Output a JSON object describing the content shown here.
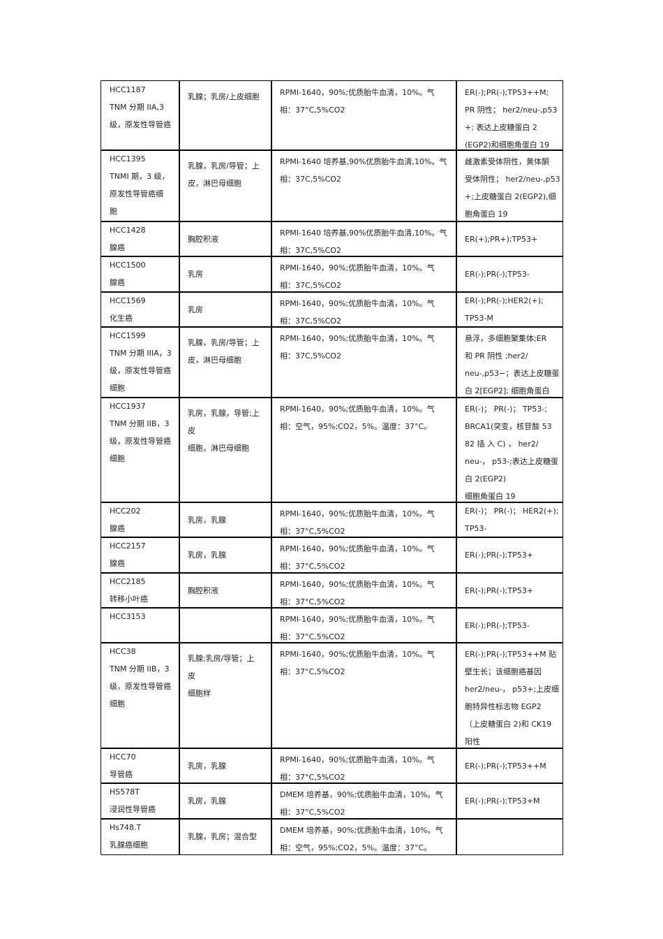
{
  "table": {
    "rows": [
      [
        [
          "HCC1187",
          "TNM 分期 IIA,3",
          "级，原发性导管癌"
        ],
        [
          "乳腺；乳房/上皮细胞"
        ],
        [
          "RPMI-1640，90%;优质胎牛血清，10%。气",
          "相：37°C,5%CO2"
        ],
        [
          "ER(-);PR(-);TP53++M;",
          "PR 阴性； her2/neu-,p53",
          "+; 表达上皮糖蛋白 2",
          "(EGP2)和细胞角蛋白 19"
        ]
      ],
      [
        [
          "HCC1395",
          "TNMI 期，3 级，",
          "原发性导管癌细",
          "胞"
        ],
        [
          "乳腺，乳房/导管；上",
          "皮，淋巴母细胞"
        ],
        [
          "RPMI-1640 培养基,90%优质胎牛血清,10%。气",
          "相：37C,5%CO2"
        ],
        [
          "雌激素受体阴性，黄体酮",
          "受体阴性； her2/neu-,p53",
          "+;上皮糖蛋白 2(EGP2),细",
          "胞角蛋白 19"
        ]
      ],
      [
        [
          "HCC1428",
          "腺癌"
        ],
        [
          "胸腔积液"
        ],
        [
          "RPMI-1640 培养基,90%优质胎牛血清,10%。气",
          "相：37C,5%CO2"
        ],
        [
          "ER(+);PR+);TP53+"
        ]
      ],
      [
        [
          "HCC1500",
          "腺癌"
        ],
        [
          "乳房"
        ],
        [
          "RPMI-1640，90%;优质胎牛血清，10%。气",
          "相：37C,5%CO2"
        ],
        [
          "ER(-);PR(-);TP53-"
        ]
      ],
      [
        [
          "HCC1569",
          "化生癌"
        ],
        [
          "乳房"
        ],
        [
          "RPMI-1640，90%;优质胎牛血清，10%。气",
          "相：37C,5%CO2"
        ],
        [
          "ER(-);PR(-);HER2(+);",
          "TP53-M"
        ]
      ],
      [
        [
          "HCC1599",
          "TNM 分期 IIIA，3",
          "级，原发性导管癌",
          "细胞"
        ],
        [
          "乳腺，乳房/导管；上",
          "皮，淋巴母细胞"
        ],
        [
          "RPMI-1640，90%;优质胎牛血清，10%。气",
          "相：37C,5%CO2"
        ],
        [
          "悬浮，多细胞聚集体;ER",
          "和 PR 阴性 ;her2/",
          "neu-,p53−；表达上皮糖蛋",
          "白 2[EGP2]; 细胞角蛋白"
        ]
      ],
      [
        [
          "HCC1937",
          "TNM 分期 IIB，3",
          "级，原发性导管癌",
          "细胞"
        ],
        [
          "乳房，乳腺，导管;上",
          "皮",
          "细胞，淋巴母细胞"
        ],
        [
          "RPMI-1640，90%;优质胎牛血清，10%。气",
          "相：空气，95%;CO2，5%。温度：37°C。"
        ],
        [
          "ER(-)； PR(-)； TP53-;",
          "BRCA1(突变，核苷酸 53",
          "82 插 入 C) ， her2/",
          "neu-， p53-;表达上皮糖蛋",
          "白 2(EGP2)",
          "细胞角蛋白 19"
        ]
      ],
      [
        [
          "HCC202",
          "腺癌"
        ],
        [
          "乳房，乳腺"
        ],
        [
          "RPMI-1640，90%;优质胎牛血清，10%。气",
          "相：37°C,5%CO2"
        ],
        [
          "ER(-)； PR(-)； HER2(+);",
          "TP53-"
        ]
      ],
      [
        [
          "HCC2157",
          "腺癌"
        ],
        [
          "乳房，乳腺"
        ],
        [
          "RPMI-1640，90%;优质胎牛血清，10%。气",
          "相：37°C,5%CO2"
        ],
        [
          "ER(-);PR(-);TP53+"
        ]
      ],
      [
        [
          "HCC2185",
          "转移小叶癌"
        ],
        [
          "胸腔积液"
        ],
        [
          "RPMI-1640，90%;优质胎牛血清，10%。气",
          "相：37°C,5%CO2"
        ],
        [
          "ER(-);PR(-);TP53+"
        ]
      ],
      [
        [
          "HCC3153"
        ],
        [],
        [
          "RPMI-1640，90%;优质胎牛血清，10%。气",
          "相：37°C,5%CO2"
        ],
        [
          "ER(-);PR(-);TP53-"
        ]
      ],
      [
        [
          "HCC38",
          "TNM 分期 IIB，3",
          "级，原发性导管癌",
          "细胞"
        ],
        [
          "乳腺;乳房/导管；上",
          "皮",
          "细胞样"
        ],
        [
          "RPMI-1640，90%;优质胎牛血清，10%。气",
          "相：37°C,5%CO2"
        ],
        [
          "ER(-);PR(-);TP53++M 贴",
          "壁生长；该细胞癌基因",
          "her2/neu-， p53+;上皮细",
          "胞特异性标志物 EGP2",
          "（上皮糖蛋白 2)和 CK19",
          "阳性"
        ]
      ],
      [
        [
          "HCC70",
          "导管癌"
        ],
        [
          "乳房，乳腺"
        ],
        [
          "RPMI-1640，90%;优质胎牛血清，10%。气",
          "相：37°C,5%CO2"
        ],
        [
          "ER(-);PR(-);TP53++M"
        ]
      ],
      [
        [
          "HS578T",
          "浸润性导管癌"
        ],
        [
          "乳房，乳腺"
        ],
        [
          "DMEM 培养基，90%;优质胎牛血清，10%。气",
          "相：37°C,5%CO2"
        ],
        [
          "ER(-);PR(-);TP53+M"
        ]
      ],
      [
        [
          "Hs748.T",
          "乳腺癌细胞"
        ],
        [
          "乳腺，乳房；混合型"
        ],
        [
          "DMEM 培养基，90%;优质胎牛血清，10%。气",
          "相：空气，95%;CO2，5%。温度：37°C。"
        ],
        []
      ]
    ]
  }
}
